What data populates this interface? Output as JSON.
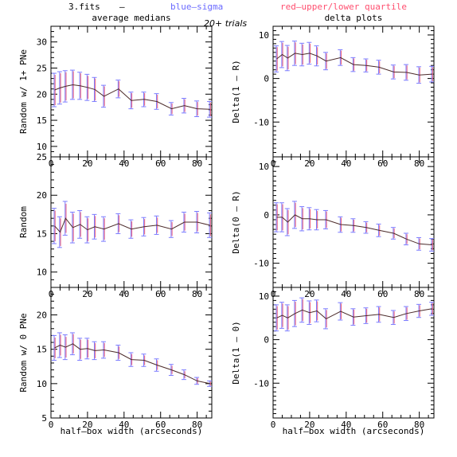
{
  "header": {
    "file": "3.fits",
    "dash": "–",
    "blue_label": "blue–sigma",
    "red_label": "red–upper/lower quartile",
    "trials": "20+ trials",
    "blue_color": "#6a6aff",
    "red_color": "#ff4f6f"
  },
  "chart_data": [
    {
      "type": "line",
      "title": "average medians",
      "xlabel": "",
      "ylabel": "Random w/ 1+ PNe",
      "xlim": [
        0,
        88
      ],
      "ylim": [
        8,
        33
      ],
      "xticks": [
        0,
        20,
        40,
        60,
        80
      ],
      "yticks": [
        10,
        15,
        20,
        25,
        30
      ],
      "x": [
        2,
        5,
        8,
        12,
        16,
        20,
        24,
        29,
        37,
        44,
        51,
        58,
        66,
        73,
        80,
        87
      ],
      "y": [
        20.8,
        21.2,
        21.5,
        21.8,
        21.6,
        21.3,
        20.9,
        19.6,
        21.0,
        18.8,
        19.0,
        18.6,
        17.2,
        17.8,
        17.2,
        17.1
      ],
      "err_blue": [
        3.2,
        3.1,
        3.0,
        2.8,
        2.6,
        2.5,
        2.3,
        2.1,
        1.7,
        1.6,
        1.4,
        1.5,
        1.2,
        1.4,
        1.5,
        1.5
      ],
      "err_red": [
        2.9,
        2.8,
        2.7,
        2.6,
        2.4,
        2.2,
        2.1,
        1.9,
        1.5,
        1.4,
        1.2,
        1.3,
        1.0,
        1.2,
        1.3,
        1.3
      ]
    },
    {
      "type": "line",
      "title": "delta plots",
      "xlabel": "",
      "ylabel": "Delta(1 – R)",
      "xlim": [
        0,
        88
      ],
      "ylim": [
        -18,
        12
      ],
      "xticks": [
        0,
        20,
        40,
        60,
        80
      ],
      "yticks": [
        -10,
        0,
        10
      ],
      "x": [
        2,
        5,
        8,
        12,
        16,
        20,
        24,
        29,
        37,
        44,
        51,
        58,
        66,
        73,
        80,
        87
      ],
      "y": [
        4.5,
        5.5,
        4.7,
        5.8,
        5.5,
        5.8,
        5.2,
        4.0,
        4.8,
        3.2,
        3.0,
        2.6,
        1.5,
        1.4,
        0.8,
        1.0
      ],
      "err_blue": [
        3.0,
        3.0,
        2.9,
        2.8,
        2.6,
        2.5,
        2.3,
        2.0,
        1.8,
        1.6,
        1.5,
        1.6,
        1.6,
        1.8,
        1.9,
        1.8
      ],
      "err_red": [
        2.7,
        2.7,
        2.6,
        2.5,
        2.3,
        2.2,
        2.0,
        1.8,
        1.6,
        1.4,
        1.3,
        1.4,
        1.4,
        1.6,
        1.7,
        1.6
      ]
    },
    {
      "type": "line",
      "title": "",
      "xlabel": "",
      "ylabel": "Random",
      "xlim": [
        0,
        88
      ],
      "ylim": [
        8,
        25
      ],
      "xticks": [
        0,
        20,
        40,
        60,
        80
      ],
      "yticks": [
        10,
        15,
        20,
        25
      ],
      "x": [
        2,
        5,
        8,
        12,
        16,
        20,
        24,
        29,
        37,
        44,
        51,
        58,
        66,
        73,
        80,
        87
      ],
      "y": [
        16.0,
        15.2,
        17.0,
        15.8,
        16.2,
        15.5,
        15.9,
        15.6,
        16.3,
        15.6,
        15.9,
        16.1,
        15.6,
        16.5,
        16.5,
        16.1
      ],
      "err_blue": [
        2.3,
        2.0,
        2.2,
        2.0,
        1.8,
        1.7,
        1.6,
        1.6,
        1.3,
        1.2,
        1.2,
        1.2,
        1.1,
        1.3,
        1.4,
        1.6
      ],
      "err_red": [
        2.0,
        1.8,
        1.9,
        1.8,
        1.6,
        1.5,
        1.4,
        1.4,
        1.1,
        1.0,
        1.0,
        1.0,
        0.9,
        1.1,
        1.2,
        1.4
      ]
    },
    {
      "type": "line",
      "title": "",
      "xlabel": "",
      "ylabel": "Delta(0 – R)",
      "xlim": [
        0,
        88
      ],
      "ylim": [
        -15,
        12
      ],
      "xticks": [
        0,
        20,
        40,
        60,
        80
      ],
      "yticks": [
        -10,
        0,
        10
      ],
      "x": [
        2,
        5,
        8,
        12,
        16,
        20,
        24,
        29,
        37,
        44,
        51,
        58,
        66,
        73,
        80,
        87
      ],
      "y": [
        -0.5,
        -0.5,
        -1.5,
        0.0,
        -0.8,
        -0.8,
        -1.0,
        -1.0,
        -2.0,
        -2.2,
        -2.6,
        -3.2,
        -3.8,
        -5.0,
        -6.0,
        -6.2
      ],
      "err_blue": [
        3.0,
        3.0,
        2.8,
        2.8,
        2.5,
        2.3,
        2.1,
        1.9,
        1.6,
        1.4,
        1.2,
        1.3,
        1.2,
        1.2,
        1.3,
        1.3
      ],
      "err_red": [
        2.7,
        2.7,
        2.5,
        2.5,
        2.2,
        2.0,
        1.8,
        1.7,
        1.4,
        1.2,
        1.0,
        1.1,
        1.0,
        1.0,
        1.1,
        1.1
      ]
    },
    {
      "type": "line",
      "title": "",
      "xlabel": "half–box width (arcseconds)",
      "ylabel": "Random w/ 0 PNe",
      "xlim": [
        0,
        88
      ],
      "ylim": [
        5,
        24
      ],
      "xticks": [
        0,
        20,
        40,
        60,
        80
      ],
      "yticks": [
        5,
        10,
        15,
        20
      ],
      "x": [
        2,
        5,
        8,
        12,
        16,
        20,
        24,
        29,
        37,
        44,
        51,
        58,
        66,
        73,
        80,
        87
      ],
      "y": [
        15.2,
        15.6,
        15.3,
        15.8,
        15.0,
        15.1,
        14.8,
        14.9,
        14.5,
        13.5,
        13.4,
        12.7,
        12.0,
        11.3,
        10.4,
        10.0
      ],
      "err_blue": [
        1.8,
        1.8,
        1.8,
        1.6,
        1.6,
        1.5,
        1.3,
        1.2,
        1.1,
        1.0,
        0.9,
        0.9,
        0.8,
        0.7,
        0.5,
        0.4
      ],
      "err_red": [
        1.5,
        1.5,
        1.5,
        1.4,
        1.4,
        1.3,
        1.1,
        1.0,
        0.9,
        0.8,
        0.7,
        0.7,
        0.6,
        0.5,
        0.4,
        0.3
      ]
    },
    {
      "type": "line",
      "title": "",
      "xlabel": "half–box width (arcseconds)",
      "ylabel": "Delta(1 – 0)",
      "xlim": [
        0,
        88
      ],
      "ylim": [
        -18,
        12
      ],
      "xticks": [
        0,
        20,
        40,
        60,
        80
      ],
      "yticks": [
        -10,
        0,
        10
      ],
      "x": [
        2,
        5,
        8,
        12,
        16,
        20,
        24,
        29,
        37,
        44,
        51,
        58,
        66,
        73,
        80,
        87
      ],
      "y": [
        5.0,
        5.6,
        5.0,
        6.0,
        6.8,
        6.2,
        6.6,
        4.8,
        6.5,
        5.2,
        5.5,
        5.8,
        5.1,
        6.0,
        6.6,
        7.1
      ],
      "err_blue": [
        3.0,
        3.0,
        3.0,
        3.0,
        2.8,
        2.7,
        2.5,
        2.3,
        2.0,
        1.9,
        1.8,
        1.8,
        1.6,
        1.6,
        1.5,
        1.5
      ],
      "err_red": [
        2.7,
        2.7,
        2.7,
        2.7,
        2.5,
        2.4,
        2.2,
        2.0,
        1.8,
        1.7,
        1.6,
        1.6,
        1.4,
        1.4,
        1.3,
        1.3
      ]
    }
  ]
}
